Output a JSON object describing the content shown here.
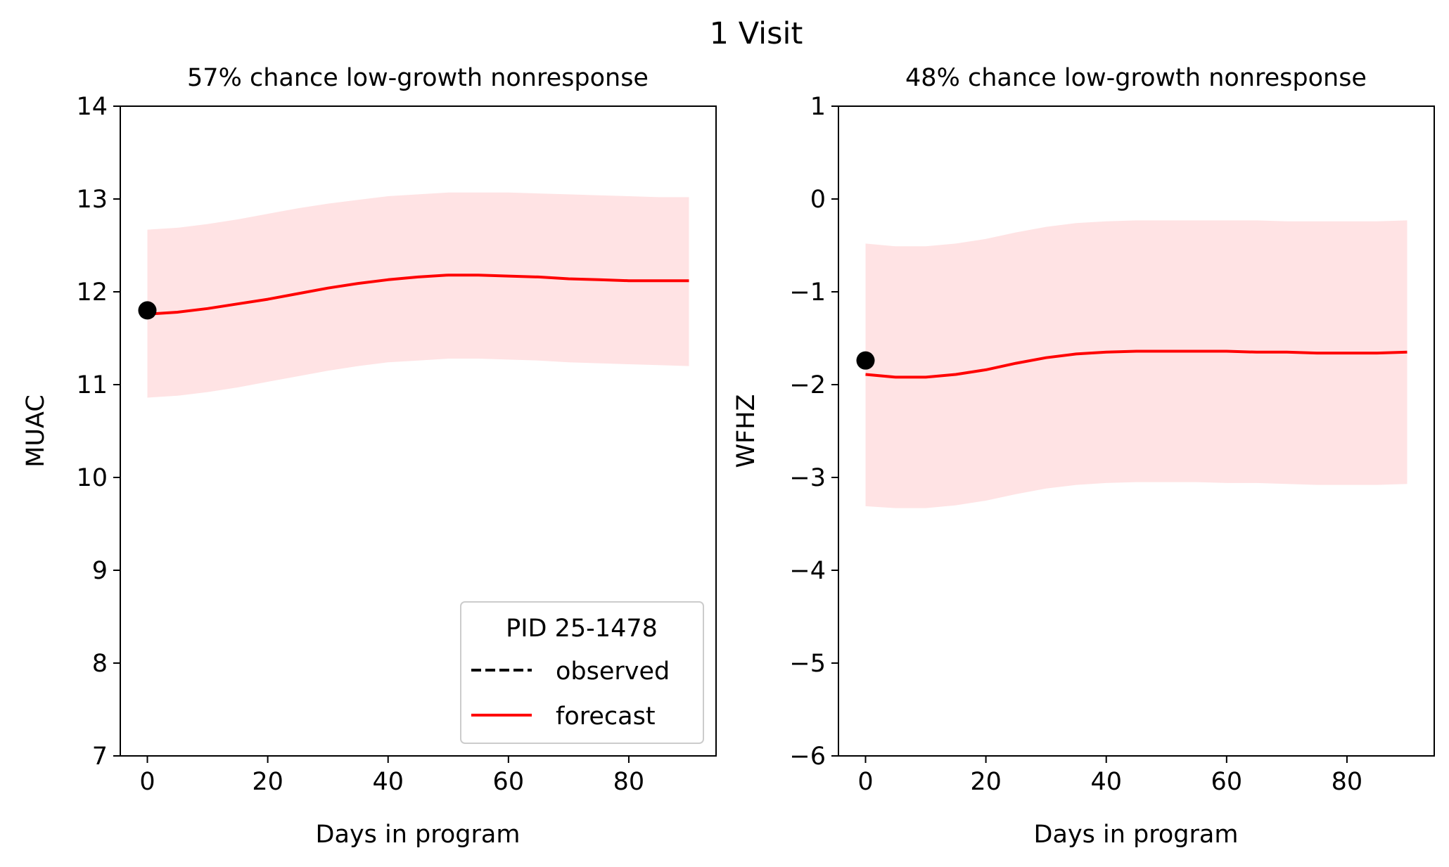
{
  "figure": {
    "title": "1 Visit"
  },
  "chart_data": [
    {
      "type": "line",
      "title": "57% chance low-growth nonresponse",
      "xlabel": "Days in program",
      "ylabel": "MUAC",
      "xlim": [
        -4.5,
        94.5
      ],
      "ylim": [
        7,
        14
      ],
      "xticks": [
        0,
        20,
        40,
        60,
        80
      ],
      "yticks": [
        7,
        8,
        9,
        10,
        11,
        12,
        13,
        14
      ],
      "grid": false,
      "observed_points": [
        {
          "x": 0,
          "y": 11.8
        }
      ],
      "forecast": {
        "x": [
          0,
          5,
          10,
          15,
          20,
          25,
          30,
          35,
          40,
          45,
          50,
          55,
          60,
          65,
          70,
          75,
          80,
          85,
          90
        ],
        "y": [
          11.76,
          11.78,
          11.82,
          11.87,
          11.92,
          11.98,
          12.04,
          12.09,
          12.13,
          12.16,
          12.18,
          12.18,
          12.17,
          12.16,
          12.14,
          12.13,
          12.12,
          12.12,
          12.12
        ],
        "lower": [
          10.86,
          10.88,
          10.92,
          10.97,
          11.03,
          11.09,
          11.15,
          11.2,
          11.24,
          11.26,
          11.28,
          11.28,
          11.27,
          11.26,
          11.24,
          11.23,
          11.22,
          11.21,
          11.2
        ],
        "upper": [
          12.67,
          12.69,
          12.73,
          12.78,
          12.84,
          12.9,
          12.95,
          12.99,
          13.03,
          13.05,
          13.07,
          13.07,
          13.07,
          13.06,
          13.05,
          13.04,
          13.03,
          13.02,
          13.02
        ]
      },
      "legend": {
        "title": "PID 25-1478",
        "position": "lower right",
        "entries": [
          {
            "label": "observed",
            "style": "dashed",
            "color": "#000000"
          },
          {
            "label": "forecast",
            "style": "solid",
            "color": "#ff0000"
          }
        ]
      }
    },
    {
      "type": "line",
      "title": "48% chance low-growth nonresponse",
      "xlabel": "Days in program",
      "ylabel": "WFHZ",
      "xlim": [
        -4.5,
        94.5
      ],
      "ylim": [
        -6,
        1
      ],
      "xticks": [
        0,
        20,
        40,
        60,
        80
      ],
      "yticks": [
        -6,
        -5,
        -4,
        -3,
        -2,
        -1,
        0,
        1
      ],
      "ytick_labels": [
        "−6",
        "−5",
        "−4",
        "−3",
        "−2",
        "−1",
        "0",
        "1"
      ],
      "grid": false,
      "observed_points": [
        {
          "x": 0,
          "y": -1.74
        }
      ],
      "forecast": {
        "x": [
          0,
          5,
          10,
          15,
          20,
          25,
          30,
          35,
          40,
          45,
          50,
          55,
          60,
          65,
          70,
          75,
          80,
          85,
          90
        ],
        "y": [
          -1.89,
          -1.92,
          -1.92,
          -1.89,
          -1.84,
          -1.77,
          -1.71,
          -1.67,
          -1.65,
          -1.64,
          -1.64,
          -1.64,
          -1.64,
          -1.65,
          -1.65,
          -1.66,
          -1.66,
          -1.66,
          -1.65
        ],
        "lower": [
          -3.31,
          -3.33,
          -3.33,
          -3.3,
          -3.25,
          -3.18,
          -3.12,
          -3.08,
          -3.06,
          -3.05,
          -3.05,
          -3.05,
          -3.06,
          -3.06,
          -3.07,
          -3.08,
          -3.08,
          -3.08,
          -3.07
        ],
        "upper": [
          -0.48,
          -0.51,
          -0.51,
          -0.48,
          -0.43,
          -0.36,
          -0.3,
          -0.26,
          -0.24,
          -0.23,
          -0.23,
          -0.23,
          -0.23,
          -0.23,
          -0.24,
          -0.24,
          -0.24,
          -0.24,
          -0.23
        ]
      }
    }
  ],
  "colors": {
    "forecast_line": "#ff0000",
    "band": "#ffe3e4",
    "observed": "#000000"
  }
}
